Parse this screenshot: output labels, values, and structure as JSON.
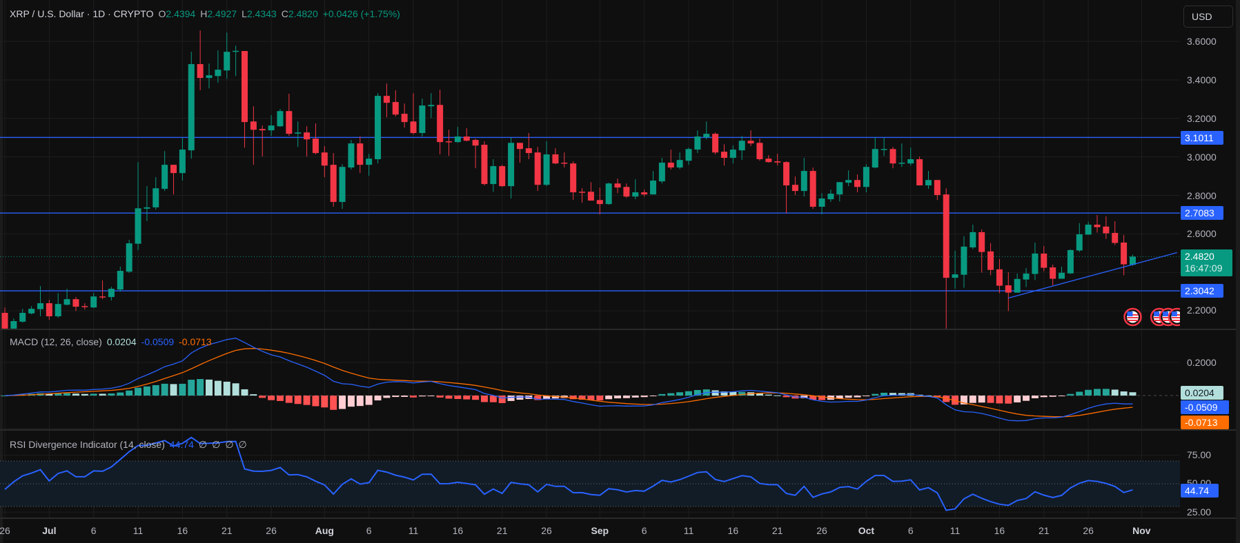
{
  "header": {
    "symbol_title": "XRP / U.S. Dollar · 1D · CRYPTO",
    "open_label": "O",
    "open": "2.4394",
    "high_label": "H",
    "high": "2.4927",
    "low_label": "L",
    "low": "2.4343",
    "close_label": "C",
    "close": "2.4820",
    "change": "+0.0426 (+1.75%)"
  },
  "currency_button": "USD",
  "price_axis": {
    "ticks": [
      "3.6000",
      "3.4000",
      "3.2000",
      "3.0000",
      "2.8000",
      "2.6000",
      "2.2000"
    ],
    "level_badges": [
      "3.1011",
      "2.7083",
      "2.3042"
    ],
    "current_price": "2.4820",
    "countdown": "16:47:09"
  },
  "macd": {
    "legend": "MACD (12, 26, close)",
    "histogram_value": "0.0204",
    "macd_value": "-0.0509",
    "signal_value": "-0.0713",
    "axis_ticks": [
      "0.2000"
    ]
  },
  "rsi": {
    "legend": "RSI Divergence Indicator (14, close)",
    "value": "44.74",
    "na_values": [
      "∅",
      "∅",
      "∅",
      "∅"
    ],
    "axis_ticks": [
      "75.00",
      "50.00",
      "25.00"
    ]
  },
  "time_axis": [
    {
      "label": "26",
      "date": "Jun 26"
    },
    {
      "label": "Jul",
      "date": "Jul 1"
    },
    {
      "label": "6",
      "date": "Jul 6"
    },
    {
      "label": "11",
      "date": "Jul 11"
    },
    {
      "label": "16",
      "date": "Jul 16"
    },
    {
      "label": "21",
      "date": "Jul 21"
    },
    {
      "label": "26",
      "date": "Jul 26"
    },
    {
      "label": "Aug",
      "date": "Aug 1"
    },
    {
      "label": "6",
      "date": "Aug 6"
    },
    {
      "label": "11",
      "date": "Aug 11"
    },
    {
      "label": "16",
      "date": "Aug 16"
    },
    {
      "label": "21",
      "date": "Aug 21"
    },
    {
      "label": "26",
      "date": "Aug 26"
    },
    {
      "label": "Sep",
      "date": "Sep 1"
    },
    {
      "label": "6",
      "date": "Sep 6"
    },
    {
      "label": "11",
      "date": "Sep 11"
    },
    {
      "label": "16",
      "date": "Sep 16"
    },
    {
      "label": "21",
      "date": "Sep 21"
    },
    {
      "label": "26",
      "date": "Sep 26"
    },
    {
      "label": "Oct",
      "date": "Oct 1"
    },
    {
      "label": "6",
      "date": "Oct 6"
    },
    {
      "label": "11",
      "date": "Oct 11"
    },
    {
      "label": "16",
      "date": "Oct 16"
    },
    {
      "label": "21",
      "date": "Oct 21"
    },
    {
      "label": "26",
      "date": "Oct 26"
    },
    {
      "label": "Nov",
      "date": "Nov 1"
    }
  ],
  "colors": {
    "up": "#089981",
    "down": "#f23645",
    "level_line": "#2962ff",
    "macd_line": "#2962ff",
    "signal_line": "#ff6d00",
    "hist_up_strong": "#26a69a",
    "hist_up_weak": "#b2dfdb",
    "hist_down_strong": "#ff5252",
    "hist_down_weak": "#ffcdd2",
    "rsi_line": "#2962ff",
    "rsi_band": "#121c26",
    "background": "#0f0f0f"
  },
  "chart_data": {
    "type": "candlestick",
    "interval": "1D",
    "ylim": [
      2.104,
      3.815
    ],
    "grid": true,
    "candles_format": [
      "date",
      "open",
      "high",
      "low",
      "close"
    ],
    "candles": [
      [
        "Jun 26",
        2.19,
        2.218,
        2.1,
        2.108
      ],
      [
        "Jun 27",
        2.108,
        2.161,
        2.1,
        2.147
      ],
      [
        "Jun 28",
        2.144,
        2.211,
        2.139,
        2.19
      ],
      [
        "Jun 29",
        2.187,
        2.225,
        2.182,
        2.211
      ],
      [
        "Jun 30",
        2.209,
        2.329,
        2.172,
        2.24
      ],
      [
        "Jul 1",
        2.24,
        2.257,
        2.154,
        2.172
      ],
      [
        "Jul 2",
        2.172,
        2.293,
        2.164,
        2.236
      ],
      [
        "Jul 3",
        2.232,
        2.315,
        2.229,
        2.261
      ],
      [
        "Jul 4",
        2.261,
        2.272,
        2.2,
        2.222
      ],
      [
        "Jul 5",
        2.225,
        2.24,
        2.207,
        2.222
      ],
      [
        "Jul 6",
        2.218,
        2.293,
        2.215,
        2.275
      ],
      [
        "Jul 7",
        2.275,
        2.358,
        2.261,
        2.273
      ],
      [
        "Jul 8",
        2.272,
        2.325,
        2.254,
        2.315
      ],
      [
        "Jul 9",
        2.311,
        2.43,
        2.3,
        2.408
      ],
      [
        "Jul 10",
        2.404,
        2.569,
        2.397,
        2.551
      ],
      [
        "Jul 11",
        2.549,
        2.973,
        2.516,
        2.733
      ],
      [
        "Jul 12",
        2.731,
        2.848,
        2.667,
        2.738
      ],
      [
        "Jul 13",
        2.738,
        2.895,
        2.726,
        2.837
      ],
      [
        "Jul 14",
        2.834,
        3.03,
        2.823,
        2.959
      ],
      [
        "Jul 15",
        2.959,
        2.959,
        2.805,
        2.916
      ],
      [
        "Jul 16",
        2.916,
        3.099,
        2.877,
        3.038
      ],
      [
        "Jul 17",
        3.034,
        3.546,
        2.991,
        3.482
      ],
      [
        "Jul 18",
        3.482,
        3.657,
        3.346,
        3.41
      ],
      [
        "Jul 19",
        3.41,
        3.485,
        3.356,
        3.424
      ],
      [
        "Jul 20",
        3.42,
        3.553,
        3.385,
        3.453
      ],
      [
        "Jul 21",
        3.449,
        3.646,
        3.406,
        3.546
      ],
      [
        "Jul 22",
        3.55,
        3.578,
        3.42,
        3.551
      ],
      [
        "Jul 23",
        3.55,
        3.55,
        3.048,
        3.181
      ],
      [
        "Jul 24",
        3.184,
        3.263,
        2.959,
        3.141
      ],
      [
        "Jul 25",
        3.145,
        3.163,
        3.002,
        3.138
      ],
      [
        "Jul 26",
        3.138,
        3.217,
        3.109,
        3.163
      ],
      [
        "Jul 27",
        3.159,
        3.249,
        3.156,
        3.238
      ],
      [
        "Jul 28",
        3.238,
        3.328,
        3.109,
        3.12
      ],
      [
        "Jul 29",
        3.121,
        3.184,
        3.052,
        3.127
      ],
      [
        "Jul 30",
        3.127,
        3.159,
        3.002,
        3.091
      ],
      [
        "Jul 31",
        3.095,
        3.174,
        3.013,
        3.02
      ],
      [
        "Aug 1",
        3.023,
        3.056,
        2.895,
        2.955
      ],
      [
        "Aug 2",
        2.959,
        3.02,
        2.741,
        2.766
      ],
      [
        "Aug 3",
        2.766,
        2.962,
        2.73,
        2.948
      ],
      [
        "Aug 4",
        2.945,
        3.088,
        2.934,
        3.07
      ],
      [
        "Aug 5",
        3.07,
        3.106,
        2.916,
        2.959
      ],
      [
        "Aug 6",
        2.959,
        3.016,
        2.902,
        2.991
      ],
      [
        "Aug 7",
        2.988,
        3.331,
        2.966,
        3.317
      ],
      [
        "Aug 8",
        3.317,
        3.381,
        3.206,
        3.281
      ],
      [
        "Aug 9",
        3.285,
        3.346,
        3.21,
        3.22
      ],
      [
        "Aug 10",
        3.224,
        3.277,
        3.152,
        3.181
      ],
      [
        "Aug 11",
        3.184,
        3.331,
        3.116,
        3.124
      ],
      [
        "Aug 12",
        3.124,
        3.303,
        3.106,
        3.267
      ],
      [
        "Aug 13",
        3.263,
        3.331,
        3.202,
        3.27
      ],
      [
        "Aug 14",
        3.27,
        3.349,
        3.013,
        3.077
      ],
      [
        "Aug 15",
        3.081,
        3.141,
        3.005,
        3.078
      ],
      [
        "Aug 16",
        3.077,
        3.156,
        3.073,
        3.106
      ],
      [
        "Aug 17",
        3.106,
        3.149,
        3.081,
        3.084
      ],
      [
        "Aug 18",
        3.088,
        3.095,
        2.941,
        3.059
      ],
      [
        "Aug 19",
        3.063,
        3.081,
        2.852,
        2.859
      ],
      [
        "Aug 20",
        2.859,
        2.988,
        2.819,
        2.952
      ],
      [
        "Aug 21",
        2.952,
        2.959,
        2.844,
        2.848
      ],
      [
        "Aug 22",
        2.848,
        3.102,
        2.784,
        3.073
      ],
      [
        "Aug 23",
        3.073,
        3.073,
        2.97,
        3.041
      ],
      [
        "Aug 24",
        3.045,
        3.124,
        2.988,
        3.02
      ],
      [
        "Aug 25",
        3.023,
        3.052,
        2.823,
        2.855
      ],
      [
        "Aug 26",
        2.855,
        3.081,
        2.848,
        3.013
      ],
      [
        "Aug 27",
        3.013,
        3.045,
        2.962,
        2.966
      ],
      [
        "Aug 28",
        2.97,
        3.023,
        2.945,
        2.967
      ],
      [
        "Aug 29",
        2.966,
        2.977,
        2.776,
        2.816
      ],
      [
        "Aug 30",
        2.819,
        2.837,
        2.762,
        2.817
      ],
      [
        "Aug 31",
        2.819,
        2.869,
        2.773,
        2.773
      ],
      [
        "Sep 1",
        2.776,
        2.841,
        2.701,
        2.755
      ],
      [
        "Sep 2",
        2.755,
        2.866,
        2.751,
        2.862
      ],
      [
        "Sep 3",
        2.862,
        2.887,
        2.812,
        2.841
      ],
      [
        "Sep 4",
        2.844,
        2.862,
        2.787,
        2.794
      ],
      [
        "Sep 5",
        2.794,
        2.884,
        2.78,
        2.816
      ],
      [
        "Sep 6",
        2.816,
        2.83,
        2.794,
        2.805
      ],
      [
        "Sep 7",
        2.805,
        2.927,
        2.805,
        2.877
      ],
      [
        "Sep 8",
        2.873,
        2.995,
        2.862,
        2.97
      ],
      [
        "Sep 9",
        2.97,
        3.038,
        2.934,
        2.945
      ],
      [
        "Sep 10",
        2.945,
        3.023,
        2.937,
        2.984
      ],
      [
        "Sep 11",
        2.98,
        3.048,
        2.959,
        3.041
      ],
      [
        "Sep 12",
        3.038,
        3.138,
        3.02,
        3.106
      ],
      [
        "Sep 13",
        3.102,
        3.184,
        3.091,
        3.12
      ],
      [
        "Sep 14",
        3.12,
        3.127,
        3.013,
        3.023
      ],
      [
        "Sep 15",
        3.027,
        3.066,
        2.955,
        2.995
      ],
      [
        "Sep 16",
        2.995,
        3.059,
        2.966,
        3.038
      ],
      [
        "Sep 17",
        3.034,
        3.109,
        2.984,
        3.084
      ],
      [
        "Sep 18",
        3.084,
        3.138,
        3.056,
        3.07
      ],
      [
        "Sep 19",
        3.073,
        3.095,
        2.98,
        2.988
      ],
      [
        "Sep 20",
        2.991,
        3.009,
        2.97,
        2.973
      ],
      [
        "Sep 21",
        2.977,
        3.016,
        2.955,
        2.971
      ],
      [
        "Sep 22",
        2.973,
        2.977,
        2.708,
        2.852
      ],
      [
        "Sep 23",
        2.855,
        2.898,
        2.802,
        2.823
      ],
      [
        "Sep 24",
        2.823,
        2.995,
        2.794,
        2.927
      ],
      [
        "Sep 25",
        2.927,
        2.945,
        2.73,
        2.741
      ],
      [
        "Sep 26",
        2.741,
        2.812,
        2.701,
        2.784
      ],
      [
        "Sep 27",
        2.78,
        2.83,
        2.766,
        2.809
      ],
      [
        "Sep 28",
        2.805,
        2.869,
        2.769,
        2.869
      ],
      [
        "Sep 29",
        2.866,
        2.93,
        2.848,
        2.88
      ],
      [
        "Sep 30",
        2.88,
        2.909,
        2.816,
        2.844
      ],
      [
        "Oct 1",
        2.844,
        2.962,
        2.816,
        2.948
      ],
      [
        "Oct 2",
        2.945,
        3.102,
        2.941,
        3.041
      ],
      [
        "Oct 3",
        3.04,
        3.099,
        3.005,
        3.041
      ],
      [
        "Oct 4",
        3.041,
        3.052,
        2.941,
        2.966
      ],
      [
        "Oct 5",
        2.967,
        3.07,
        2.948,
        2.97
      ],
      [
        "Oct 6",
        2.966,
        3.048,
        2.955,
        2.988
      ],
      [
        "Oct 7",
        2.988,
        3.002,
        2.852,
        2.852
      ],
      [
        "Oct 8",
        2.852,
        2.927,
        2.834,
        2.88
      ],
      [
        "Oct 9",
        2.88,
        2.88,
        2.776,
        2.802
      ],
      [
        "Oct 10",
        2.805,
        2.837,
        2.08,
        2.372
      ],
      [
        "Oct 11",
        2.372,
        2.512,
        2.315,
        2.39
      ],
      [
        "Oct 12",
        2.388,
        2.588,
        2.32,
        2.534
      ],
      [
        "Oct 13",
        2.53,
        2.648,
        2.521,
        2.609
      ],
      [
        "Oct 14",
        2.609,
        2.623,
        2.399,
        2.506
      ],
      [
        "Oct 15",
        2.509,
        2.552,
        2.385,
        2.413
      ],
      [
        "Oct 16",
        2.416,
        2.469,
        2.292,
        2.331
      ],
      [
        "Oct 17",
        2.333,
        2.401,
        2.199,
        2.295
      ],
      [
        "Oct 18",
        2.295,
        2.394,
        2.295,
        2.366
      ],
      [
        "Oct 19",
        2.363,
        2.423,
        2.324,
        2.394
      ],
      [
        "Oct 20",
        2.392,
        2.555,
        2.36,
        2.498
      ],
      [
        "Oct 21",
        2.498,
        2.537,
        2.406,
        2.424
      ],
      [
        "Oct 22",
        2.426,
        2.441,
        2.333,
        2.367
      ],
      [
        "Oct 23",
        2.367,
        2.43,
        2.367,
        2.398
      ],
      [
        "Oct 24",
        2.395,
        2.52,
        2.392,
        2.516
      ],
      [
        "Oct 25",
        2.514,
        2.656,
        2.506,
        2.598
      ],
      [
        "Oct 26",
        2.596,
        2.663,
        2.596,
        2.648
      ],
      [
        "Oct 27",
        2.648,
        2.698,
        2.607,
        2.635
      ],
      [
        "Oct 28",
        2.638,
        2.691,
        2.574,
        2.603
      ],
      [
        "Oct 29",
        2.605,
        2.666,
        2.542,
        2.553
      ],
      [
        "Oct 30",
        2.555,
        2.595,
        2.385,
        2.442
      ],
      [
        "Oct 31",
        2.4394,
        2.4927,
        2.4343,
        2.482
      ]
    ],
    "horizontal_levels": [
      3.1011,
      2.7083,
      2.3042
    ],
    "current_price": 2.482,
    "trendline": [
      {
        "date": "Oct 17",
        "price": 2.267
      },
      {
        "date": "Nov 5",
        "price": 2.503
      }
    ],
    "event_markers": [
      {
        "date": "Oct 31",
        "icon": "us-flag"
      },
      {
        "date": "Nov 3",
        "icon": "us-flag"
      },
      {
        "date": "Nov 4",
        "icon": "us-flag"
      },
      {
        "date": "Nov 5",
        "icon": "us-flag"
      }
    ],
    "macd_params": {
      "fast": 12,
      "slow": 26,
      "signal": 9,
      "source": "close"
    },
    "macd_ylim": [
      -0.208,
      0.4
    ],
    "rsi_params": {
      "length": 14,
      "source": "close",
      "upper_band": 70,
      "middle": 50,
      "lower_band": 30
    },
    "rsi_ylim": [
      19.7,
      97.3
    ]
  }
}
